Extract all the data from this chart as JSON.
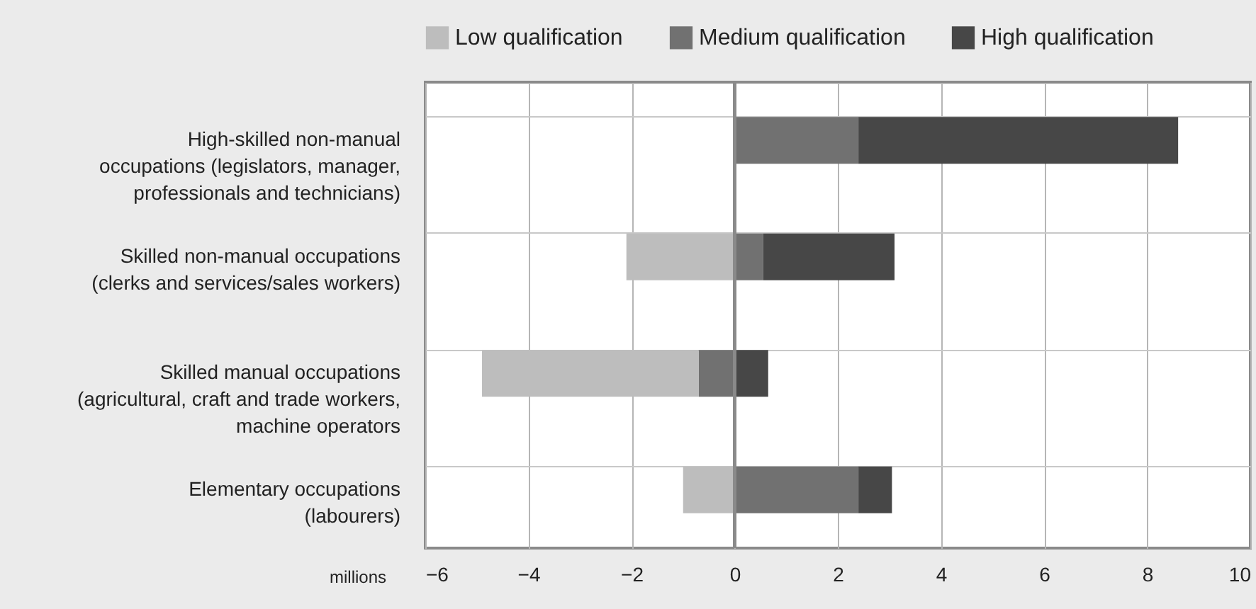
{
  "chart_data": {
    "type": "bar",
    "orientation": "horizontal",
    "stacked": true,
    "categories": [
      "High-skilled non-manual\noccupations (legislators, manager,\nprofessionals and technicians)",
      "Skilled non-manual occupations\n(clerks and services/sales workers)",
      "Skilled manual occupations\n(agricultural, craft and trade workers,\nmachine operators",
      "Elementary occupations\n(labourers)"
    ],
    "series": [
      {
        "name": "Medium qualification",
        "color": "#717171",
        "values": [
          2.4,
          0.55,
          -0.7,
          2.4
        ]
      },
      {
        "name": "High qualification",
        "color": "#474747",
        "values": [
          6.2,
          2.55,
          0.65,
          0.65
        ]
      },
      {
        "name": "Low qualification",
        "color": "#bdbdbd",
        "values": [
          null,
          -2.1,
          -4.2,
          -1.0
        ]
      }
    ],
    "xlabel": "millions",
    "xlim": [
      -6,
      10
    ],
    "xticks": [
      -6,
      -4,
      -2,
      0,
      2,
      4,
      6,
      8,
      10
    ],
    "ref_lines": [
      {
        "axis": "x",
        "value": 0,
        "color": "#8a8a8a"
      }
    ],
    "grid": true,
    "legend": "top"
  }
}
